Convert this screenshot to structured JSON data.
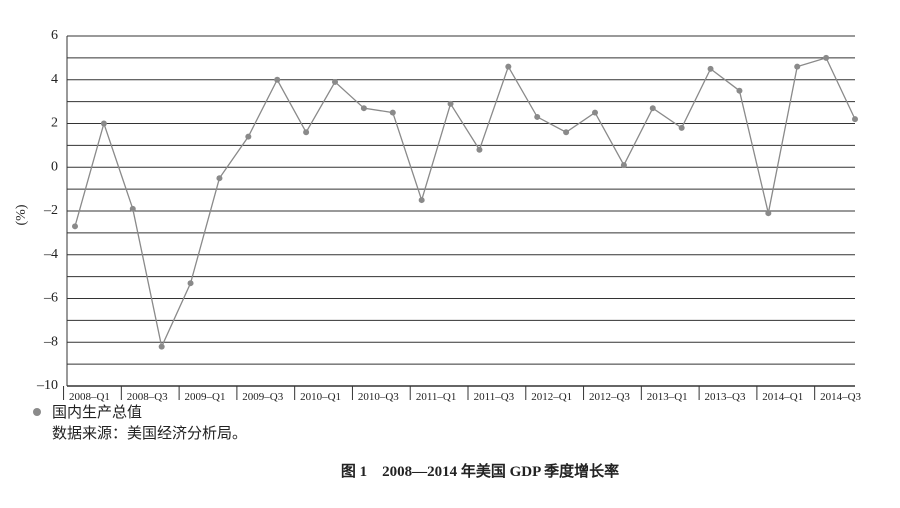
{
  "chart_data": {
    "type": "line",
    "title": "图 1　2008—2014 年美国 GDP 季度增长率",
    "y_label": "(%)",
    "note": "数据来源：美国经济分析局。",
    "categories": [
      "2008–Q1",
      null,
      "2008–Q3",
      null,
      "2009–Q1",
      null,
      "2009–Q3",
      null,
      "2010–Q1",
      null,
      "2010–Q3",
      null,
      "2011–Q1",
      null,
      "2011–Q3",
      null,
      "2012–Q1",
      null,
      "2012–Q3",
      null,
      "2013–Q1",
      null,
      "2013–Q3",
      null,
      "2014–Q1",
      null,
      "2014–Q3",
      null
    ],
    "series": [
      {
        "name": "国内生产总值",
        "color": "#8a8a8a",
        "values": [
          -2.7,
          2.0,
          -1.9,
          -8.2,
          -5.3,
          -0.5,
          1.4,
          4.0,
          1.6,
          3.9,
          2.7,
          2.5,
          -1.5,
          2.9,
          0.8,
          4.6,
          2.3,
          1.6,
          2.5,
          0.1,
          2.7,
          1.8,
          4.5,
          3.5,
          -2.1,
          4.6,
          5.0,
          2.2
        ]
      }
    ],
    "ylim": [
      -10,
      6
    ],
    "yticks": [
      {
        "value": -10,
        "label": "–10"
      },
      {
        "value": -8,
        "label": "–8"
      },
      {
        "value": -6,
        "label": "–6"
      },
      {
        "value": -4,
        "label": "–4"
      },
      {
        "value": -2,
        "label": "–2"
      },
      0,
      2,
      4,
      6
    ],
    "minor_yticks": [
      -9,
      -7,
      -5,
      -3,
      -1,
      1,
      3,
      5
    ],
    "grid": true
  }
}
